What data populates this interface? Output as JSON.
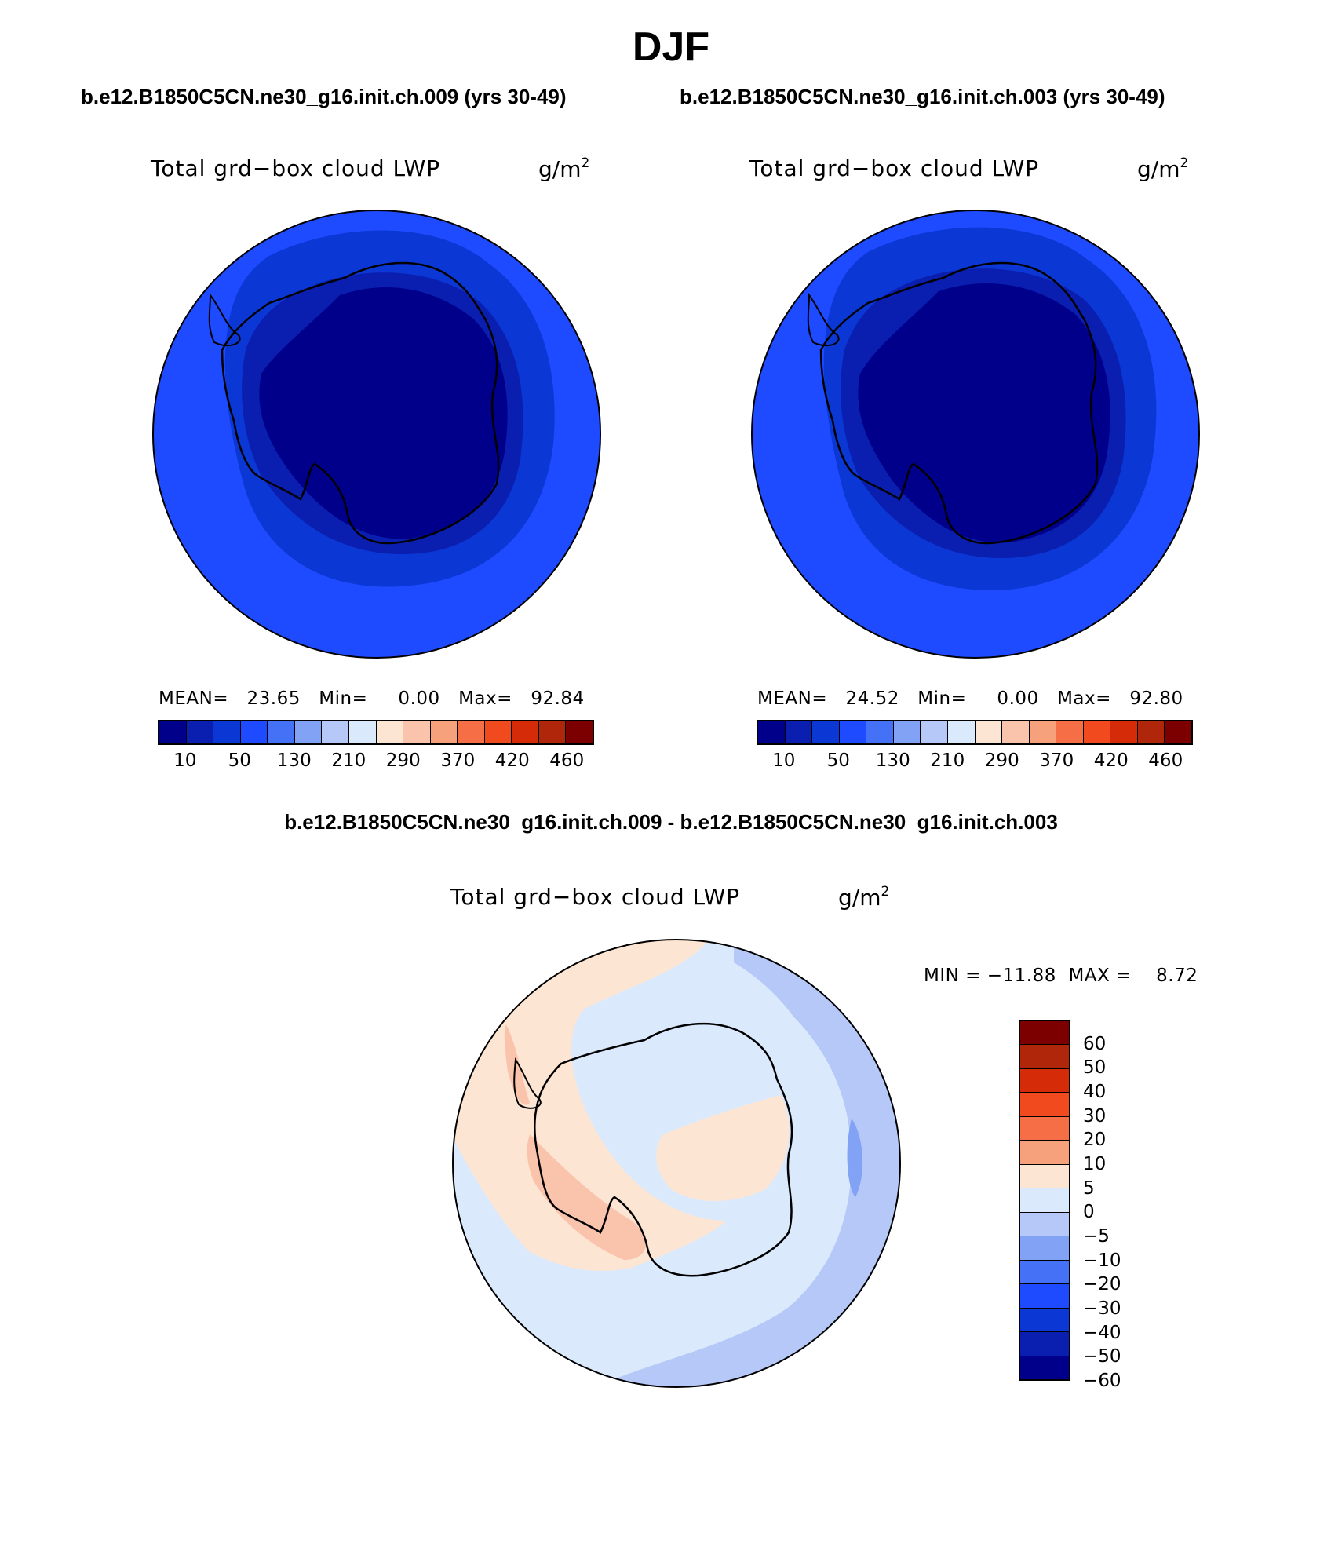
{
  "title": "DJF",
  "panel_left": {
    "case": "b.e12.B1850C5CN.ne30_g16.init.ch.009 (yrs 30-49)",
    "variable": "Total grd−box cloud LWP",
    "units": "g/m",
    "units_sup": "2",
    "stats": "MEAN=   23.65   Min=     0.00   Max=   92.84",
    "mean": 23.65,
    "min": 0.0,
    "max": 92.84
  },
  "panel_right": {
    "case": "b.e12.B1850C5CN.ne30_g16.init.ch.003 (yrs 30-49)",
    "variable": "Total grd−box cloud LWP",
    "units": "g/m",
    "units_sup": "2",
    "stats": "MEAN=   24.52   Min=     0.00   Max=   92.80",
    "mean": 24.52,
    "min": 0.0,
    "max": 92.8
  },
  "panel_diff": {
    "title": "b.e12.B1850C5CN.ne30_g16.init.ch.009 - b.e12.B1850C5CN.ne30_g16.init.ch.003",
    "variable": "Total grd−box cloud LWP",
    "units": "g/m",
    "units_sup": "2",
    "stats": "MIN = −11.88  MAX =    8.72",
    "min": -11.88,
    "max": 8.72
  },
  "colorbar_main": {
    "colors": [
      "#00008b",
      "#0a1fb0",
      "#0b37d4",
      "#1e4bff",
      "#4471f5",
      "#82a2f5",
      "#b5c8f7",
      "#daeafc",
      "#fde5d3",
      "#fac4ac",
      "#f6a07c",
      "#f56e45",
      "#f04a1e",
      "#d52b08",
      "#b0260b",
      "#7d0000"
    ],
    "labels": [
      "10",
      "50",
      "130",
      "210",
      "290",
      "370",
      "420",
      "460"
    ]
  },
  "colorbar_diff": {
    "colors": [
      "#7d0000",
      "#b0260b",
      "#d52b08",
      "#f04a1e",
      "#f56e45",
      "#f6a07c",
      "#fde5d3",
      "#daeafc",
      "#b5c8f7",
      "#82a2f5",
      "#4471f5",
      "#1e4bff",
      "#0b37d4",
      "#0a1fb0",
      "#00008b"
    ],
    "labels": [
      "60",
      "50",
      "40",
      "30",
      "20",
      "10",
      "5",
      "0",
      "−5",
      "−10",
      "−20",
      "−30",
      "−40",
      "−50",
      "−60"
    ]
  },
  "map_colors": {
    "outer": "#1e4bff",
    "ring1": "#0b37d4",
    "ring2": "#0a1fb0",
    "inner": "#00008b",
    "diff_bg": "#daeafc",
    "diff_pos": "#fde5d3",
    "diff_pos2": "#fac4ac",
    "diff_neg": "#b5c8f7",
    "diff_neg2": "#82a2f5"
  }
}
